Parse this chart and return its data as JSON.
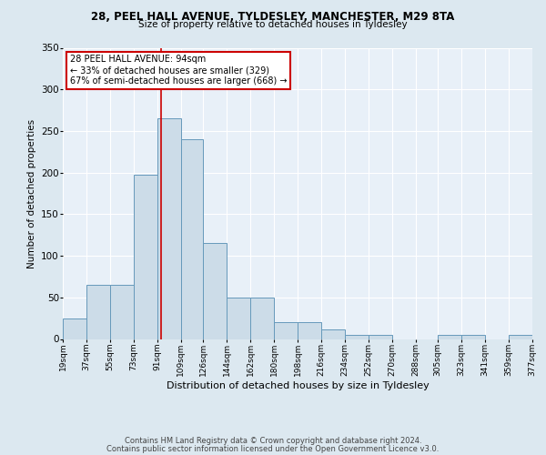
{
  "title1": "28, PEEL HALL AVENUE, TYLDESLEY, MANCHESTER, M29 8TA",
  "title2": "Size of property relative to detached houses in Tyldesley",
  "xlabel": "Distribution of detached houses by size in Tyldesley",
  "ylabel": "Number of detached properties",
  "footnote1": "Contains HM Land Registry data © Crown copyright and database right 2024.",
  "footnote2": "Contains public sector information licensed under the Open Government Licence v3.0.",
  "annotation_title": "28 PEEL HALL AVENUE: 94sqm",
  "annotation_line1": "← 33% of detached houses are smaller (329)",
  "annotation_line2": "67% of semi-detached houses are larger (668) →",
  "property_size": 94,
  "bar_edges": [
    19,
    37,
    55,
    73,
    91,
    109,
    126,
    144,
    162,
    180,
    198,
    216,
    234,
    252,
    270,
    288,
    305,
    323,
    341,
    359,
    377
  ],
  "bar_heights": [
    25,
    65,
    65,
    197,
    265,
    240,
    115,
    50,
    50,
    20,
    20,
    12,
    5,
    5,
    0,
    0,
    5,
    5,
    0,
    5
  ],
  "bar_color": "#ccdce8",
  "bar_edge_color": "#6699bb",
  "vline_color": "#cc0000",
  "background_color": "#dce8f0",
  "plot_bg_color": "#e8f0f8",
  "ylim": [
    0,
    350
  ],
  "yticks": [
    0,
    50,
    100,
    150,
    200,
    250,
    300,
    350
  ],
  "annotation_box_color": "#ffffff",
  "annotation_box_edge": "#cc0000",
  "grid_color": "#ffffff"
}
